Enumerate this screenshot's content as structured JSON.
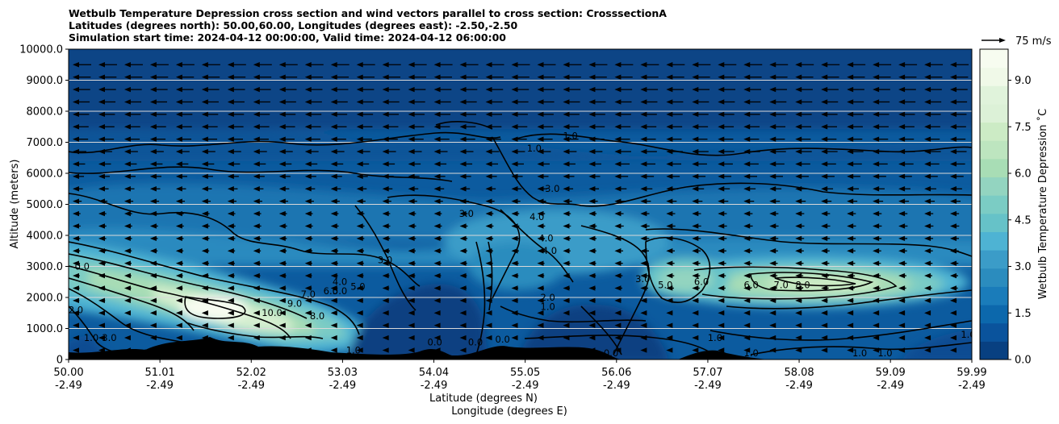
{
  "title_lines": [
    "Wetbulb Temperature Depression cross section and wind vectors parallel to cross section: CrosssectionA",
    "Latitudes (degrees north): 50.00,60.00, Longitudes (degrees east): -2.50,-2.50",
    "Simulation start time: 2024-04-12 00:00:00, Valid time: 2024-04-12 06:00:00"
  ],
  "chart_data": {
    "type": "heatmap",
    "subtype": "vertical cross section with filled contours, contour lines and wind vectors",
    "title": "Wetbulb Temperature Depression cross section and wind vectors parallel to cross section: CrosssectionA",
    "ylabel": "Altitude (meters)",
    "xlabel_1": "Latitude (degrees N)",
    "xlabel_2": "Longitude (degrees E)",
    "ylim": [
      0,
      10000
    ],
    "xlim": [
      50.0,
      59.99
    ],
    "y_ticks": [
      "0",
      "1000.0",
      "2000.0",
      "3000.0",
      "4000.0",
      "5000.0",
      "6000.0",
      "7000.0",
      "8000.0",
      "9000.0",
      "10000.0"
    ],
    "x_ticks": [
      {
        "lat": "50.00",
        "lon": "-2.49"
      },
      {
        "lat": "51.01",
        "lon": "-2.49"
      },
      {
        "lat": "52.02",
        "lon": "-2.49"
      },
      {
        "lat": "53.03",
        "lon": "-2.49"
      },
      {
        "lat": "54.04",
        "lon": "-2.49"
      },
      {
        "lat": "55.05",
        "lon": "-2.49"
      },
      {
        "lat": "56.06",
        "lon": "-2.49"
      },
      {
        "lat": "57.07",
        "lon": "-2.49"
      },
      {
        "lat": "58.08",
        "lon": "-2.49"
      },
      {
        "lat": "59.09",
        "lon": "-2.49"
      },
      {
        "lat": "59.99",
        "lon": "-2.49"
      }
    ],
    "grid": "horizontal",
    "colorbar": {
      "label": "Wetbulb Temperature Depression ˚C",
      "range": [
        0,
        10
      ],
      "ticks": [
        "0.0",
        "1.5",
        "3.0",
        "4.5",
        "6.0",
        "7.5",
        "9.0"
      ],
      "colors": [
        "#084081",
        "#0a539c",
        "#0c68ac",
        "#1a7cba",
        "#2b8cbe",
        "#3b9cc8",
        "#4eb3d3",
        "#66c2c8",
        "#7bccc4",
        "#93d4c0",
        "#a8ddb5",
        "#bde5bf",
        "#ccebc5",
        "#dcf1d7",
        "#e0f3db",
        "#f0f9e8",
        "#f7fcf0"
      ]
    },
    "quiver_key": {
      "label": "75 m/s"
    },
    "contour_labels": [
      {
        "text": "0.0",
        "lat": 50.15,
        "alt": 2900
      },
      {
        "text": "2.0",
        "lat": 50.08,
        "alt": 1500
      },
      {
        "text": "3.0",
        "lat": 50.45,
        "alt": 600
      },
      {
        "text": "1.0",
        "lat": 50.25,
        "alt": 600
      },
      {
        "text": "0.0",
        "lat": 50.9,
        "alt": 100
      },
      {
        "text": "1.0",
        "lat": 51.65,
        "alt": 100
      },
      {
        "text": "10.0",
        "lat": 52.25,
        "alt": 1400
      },
      {
        "text": "9.0",
        "lat": 52.5,
        "alt": 1700
      },
      {
        "text": "8.0",
        "lat": 52.75,
        "alt": 1300
      },
      {
        "text": "7.0",
        "lat": 52.65,
        "alt": 2000
      },
      {
        "text": "6.0",
        "lat": 52.9,
        "alt": 2100
      },
      {
        "text": "5.0",
        "lat": 53.0,
        "alt": 2100
      },
      {
        "text": "4.0",
        "lat": 53.0,
        "alt": 2400
      },
      {
        "text": "5.0",
        "lat": 53.2,
        "alt": 2250
      },
      {
        "text": "1.0",
        "lat": 53.15,
        "alt": 200
      },
      {
        "text": "3.0",
        "lat": 53.5,
        "alt": 3100
      },
      {
        "text": "3.0",
        "lat": 54.4,
        "alt": 4600
      },
      {
        "text": "0.0",
        "lat": 54.05,
        "alt": 450
      },
      {
        "text": "0.0",
        "lat": 54.5,
        "alt": 450
      },
      {
        "text": "0.0",
        "lat": 54.8,
        "alt": 550
      },
      {
        "text": "4.0",
        "lat": 55.18,
        "alt": 4500
      },
      {
        "text": "4.0",
        "lat": 55.28,
        "alt": 3800
      },
      {
        "text": "4.0",
        "lat": 55.32,
        "alt": 3400
      },
      {
        "text": "3.0",
        "lat": 55.35,
        "alt": 5400
      },
      {
        "text": "1.0",
        "lat": 55.15,
        "alt": 6700
      },
      {
        "text": "1.0",
        "lat": 55.55,
        "alt": 7100
      },
      {
        "text": "2.0",
        "lat": 55.3,
        "alt": 1900
      },
      {
        "text": "1.0",
        "lat": 55.3,
        "alt": 1600
      },
      {
        "text": "3.0",
        "lat": 56.35,
        "alt": 2500
      },
      {
        "text": "0.0",
        "lat": 56.0,
        "alt": 100
      },
      {
        "text": "5.0",
        "lat": 56.6,
        "alt": 2300
      },
      {
        "text": "6.0",
        "lat": 57.0,
        "alt": 2400
      },
      {
        "text": "1.0",
        "lat": 57.15,
        "alt": 600
      },
      {
        "text": "1.0",
        "lat": 57.55,
        "alt": 100
      },
      {
        "text": "6.0",
        "lat": 57.55,
        "alt": 2300
      },
      {
        "text": "7.0",
        "lat": 57.88,
        "alt": 2300
      },
      {
        "text": "8.0",
        "lat": 58.12,
        "alt": 2300
      },
      {
        "text": "1.0",
        "lat": 58.75,
        "alt": 100
      },
      {
        "text": "1.0",
        "lat": 59.03,
        "alt": 100
      },
      {
        "text": "1.0",
        "lat": 59.95,
        "alt": 700
      }
    ]
  }
}
